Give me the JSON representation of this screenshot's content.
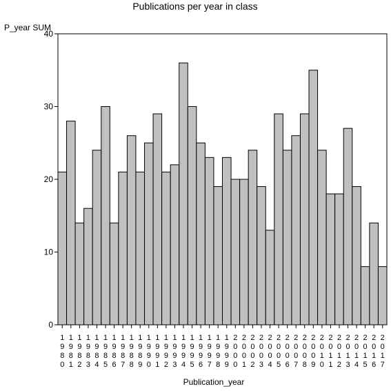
{
  "chart_data": {
    "type": "bar",
    "title": "Publications per year in class",
    "ylabel": "P_year SUM",
    "xlabel": "Publication_year",
    "ylim": [
      0,
      40
    ],
    "yticks": [
      0,
      10,
      20,
      30,
      40
    ],
    "grid": false,
    "bar_color": "#c0c0c0",
    "edge_color": "#000000",
    "categories": [
      "1980",
      "1981",
      "1982",
      "1983",
      "1984",
      "1985",
      "1986",
      "1987",
      "1988",
      "1989",
      "1990",
      "1991",
      "1992",
      "1993",
      "1994",
      "1995",
      "1996",
      "1997",
      "1998",
      "1999",
      "2000",
      "2001",
      "2002",
      "2003",
      "2004",
      "2005",
      "2006",
      "2007",
      "2008",
      "2009",
      "2010",
      "2011",
      "2012",
      "2013",
      "2014",
      "2015",
      "2016",
      "2017"
    ],
    "values": [
      21,
      28,
      14,
      16,
      24,
      30,
      14,
      21,
      26,
      21,
      25,
      29,
      21,
      22,
      36,
      30,
      25,
      23,
      19,
      23,
      20,
      20,
      24,
      19,
      13,
      29,
      24,
      26,
      29,
      35,
      24,
      18,
      18,
      27,
      19,
      8,
      14,
      8
    ]
  }
}
